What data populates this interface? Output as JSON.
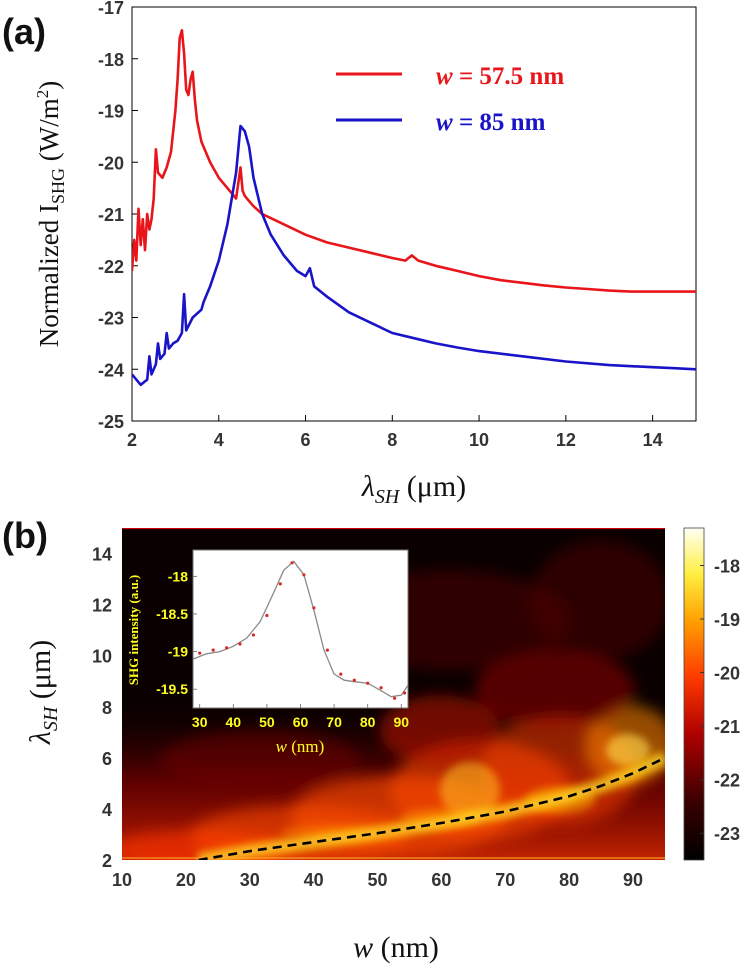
{
  "colors": {
    "red": "#e8161a",
    "blue": "#1a14c8",
    "yellow": "#ffff1e",
    "inset_bg": "#ffffff",
    "inset_line": "#8a8a8a",
    "inset_points": "#d42a2a"
  },
  "chart_data": [
    {
      "panel_label": "(a)",
      "type": "line",
      "xlabel_sym": "λ",
      "xlabel_sub": "SH",
      "xlabel_unit": " (μm)",
      "ylabel_main": "Normalized I",
      "ylabel_sub": "SHG",
      "ylabel_unit": " (W/m",
      "ylabel_exp": "2",
      "ylabel_close": ")",
      "xlim": [
        2,
        15
      ],
      "ylim": [
        -25,
        -17
      ],
      "xticks": [
        "2",
        "4",
        "6",
        "8",
        "10",
        "12",
        "14"
      ],
      "xtick_values": [
        2,
        4,
        6,
        8,
        10,
        12,
        14
      ],
      "yticks": [
        "-25",
        "-24",
        "-23",
        "-22",
        "-21",
        "-20",
        "-19",
        "-18",
        "-17"
      ],
      "ytick_values": [
        -25,
        -24,
        -23,
        -22,
        -21,
        -20,
        -19,
        -18,
        -17
      ],
      "series": [
        {
          "name": "w = 57.5 nm",
          "legend_var": "w",
          "legend_rest": " = 57.5 nm",
          "color": "#e8161a",
          "x": [
            2.0,
            2.05,
            2.1,
            2.15,
            2.2,
            2.25,
            2.3,
            2.35,
            2.4,
            2.45,
            2.5,
            2.55,
            2.6,
            2.7,
            2.8,
            2.9,
            3.0,
            3.05,
            3.1,
            3.15,
            3.2,
            3.25,
            3.3,
            3.35,
            3.4,
            3.45,
            3.5,
            3.6,
            3.8,
            4.0,
            4.2,
            4.4,
            4.5,
            4.55,
            4.6,
            4.7,
            4.8,
            5.0,
            5.5,
            6.0,
            6.5,
            7.0,
            7.5,
            8.0,
            8.3,
            8.45,
            8.6,
            9.0,
            9.5,
            10.0,
            10.5,
            11.0,
            11.5,
            12.0,
            12.5,
            13.0,
            13.5,
            14.0,
            14.5,
            15.0
          ],
          "y": [
            -22.1,
            -21.5,
            -21.9,
            -20.9,
            -21.6,
            -21.1,
            -21.7,
            -21.0,
            -21.3,
            -21.1,
            -20.7,
            -19.75,
            -20.2,
            -20.3,
            -20.1,
            -19.8,
            -19.0,
            -18.4,
            -17.6,
            -17.45,
            -17.9,
            -18.6,
            -18.7,
            -18.4,
            -18.25,
            -18.8,
            -19.2,
            -19.6,
            -20.0,
            -20.3,
            -20.5,
            -20.7,
            -20.1,
            -20.55,
            -20.65,
            -20.75,
            -20.85,
            -21.0,
            -21.2,
            -21.4,
            -21.55,
            -21.65,
            -21.75,
            -21.85,
            -21.9,
            -21.8,
            -21.9,
            -22.0,
            -22.1,
            -22.2,
            -22.28,
            -22.33,
            -22.38,
            -22.42,
            -22.45,
            -22.48,
            -22.5,
            -22.5,
            -22.5,
            -22.5
          ]
        },
        {
          "name": "w = 85 nm",
          "legend_var": "w",
          "legend_rest": " = 85 nm",
          "color": "#1a14c8",
          "x": [
            2.0,
            2.2,
            2.35,
            2.4,
            2.45,
            2.55,
            2.6,
            2.65,
            2.75,
            2.8,
            2.85,
            2.95,
            3.05,
            3.15,
            3.2,
            3.25,
            3.4,
            3.6,
            3.65,
            3.8,
            4.0,
            4.2,
            4.4,
            4.5,
            4.6,
            4.7,
            4.8,
            5.0,
            5.2,
            5.5,
            5.8,
            6.0,
            6.1,
            6.2,
            6.5,
            7.0,
            7.5,
            8.0,
            8.5,
            9.0,
            9.5,
            10.0,
            11.0,
            12.0,
            13.0,
            14.0,
            14.5,
            15.0
          ],
          "y": [
            -24.1,
            -24.3,
            -24.2,
            -23.75,
            -24.1,
            -23.9,
            -23.5,
            -23.8,
            -23.7,
            -23.3,
            -23.6,
            -23.5,
            -23.45,
            -23.3,
            -22.55,
            -23.25,
            -23.0,
            -22.85,
            -22.7,
            -22.4,
            -21.9,
            -21.2,
            -20.2,
            -19.3,
            -19.4,
            -19.7,
            -20.3,
            -21.0,
            -21.4,
            -21.8,
            -22.1,
            -22.2,
            -22.05,
            -22.4,
            -22.6,
            -22.9,
            -23.1,
            -23.3,
            -23.4,
            -23.5,
            -23.58,
            -23.65,
            -23.75,
            -23.85,
            -23.92,
            -23.96,
            -23.98,
            -24.0
          ]
        }
      ]
    },
    {
      "panel_label": "(b)",
      "type": "heatmap",
      "xlabel_var": "w",
      "xlabel_unit": " (nm)",
      "ylabel_sym": "λ",
      "ylabel_sub": "SH",
      "ylabel_unit": " (μm)",
      "xlim": [
        10,
        95
      ],
      "ylim": [
        2,
        15
      ],
      "xticks": [
        "10",
        "20",
        "30",
        "40",
        "50",
        "60",
        "70",
        "80",
        "90"
      ],
      "xtick_values": [
        10,
        20,
        30,
        40,
        50,
        60,
        70,
        80,
        90
      ],
      "yticks": [
        "2",
        "4",
        "6",
        "8",
        "10",
        "12",
        "14"
      ],
      "ytick_values": [
        2,
        4,
        6,
        8,
        10,
        12,
        14
      ],
      "colorbar_ticks": [
        "-18",
        "-19",
        "-20",
        "-21",
        "-22",
        "-23"
      ],
      "colorbar_values": [
        -18,
        -19,
        -20,
        -21,
        -22,
        -23
      ],
      "colorbar_range": [
        -23.5,
        -17.3
      ],
      "resonance_curve": {
        "style": "dashed",
        "w": [
          22,
          30,
          40,
          50,
          60,
          70,
          80,
          85,
          90,
          95
        ],
        "lambda": [
          2.0,
          2.35,
          2.7,
          3.05,
          3.45,
          3.9,
          4.5,
          4.9,
          5.4,
          6.0
        ]
      },
      "inset": {
        "type": "line",
        "ylabel": "SHG intensity (a.u.)",
        "xlabel_var": "w",
        "xlabel_unit": " (nm)",
        "xlim": [
          28,
          92
        ],
        "ylim": [
          -19.75,
          -17.65
        ],
        "xticks": [
          "30",
          "40",
          "50",
          "60",
          "70",
          "80",
          "90"
        ],
        "xtick_values": [
          30,
          40,
          50,
          60,
          70,
          80,
          90
        ],
        "yticks": [
          "-18",
          "-18.5",
          "-19",
          "-19.5"
        ],
        "ytick_values": [
          -18,
          -18.5,
          -19,
          -19.5
        ],
        "line": {
          "x": [
            28,
            32,
            36,
            40,
            44,
            48,
            52,
            55,
            58,
            61,
            64,
            67,
            70,
            73,
            76,
            80,
            84,
            87,
            90,
            92
          ],
          "y": [
            -19.1,
            -19.03,
            -19.0,
            -18.93,
            -18.82,
            -18.6,
            -18.22,
            -17.92,
            -17.8,
            -17.98,
            -18.45,
            -18.98,
            -19.3,
            -19.38,
            -19.4,
            -19.42,
            -19.52,
            -19.6,
            -19.58,
            -19.45
          ]
        },
        "points": {
          "x": [
            30,
            34,
            38,
            42,
            46,
            50,
            54,
            57.5,
            61,
            64,
            68,
            72,
            76,
            80,
            84,
            88,
            91
          ],
          "y": [
            -19.02,
            -18.98,
            -18.95,
            -18.9,
            -18.78,
            -18.52,
            -18.1,
            -17.82,
            -17.98,
            -18.42,
            -18.98,
            -19.3,
            -19.38,
            -19.42,
            -19.48,
            -19.62,
            -19.55
          ]
        }
      }
    }
  ]
}
